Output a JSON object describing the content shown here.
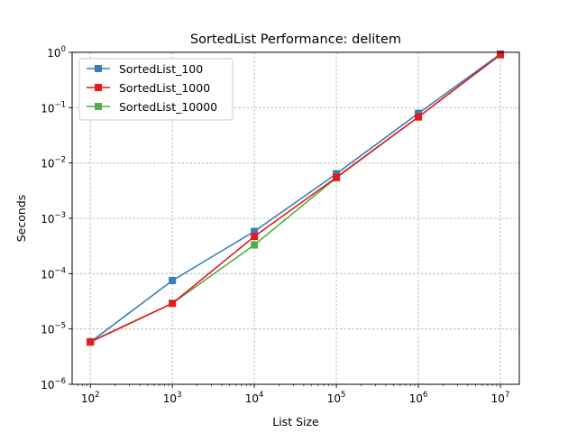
{
  "chart_data": {
    "type": "line",
    "title": "SortedList Performance: delitem",
    "xlabel": "List Size",
    "ylabel": "Seconds",
    "xscale": "log",
    "yscale": "log",
    "xlim": [
      60,
      17000000
    ],
    "ylim": [
      1e-06,
      1
    ],
    "xticks": [
      {
        "value": 100,
        "base": "10",
        "exp": "2"
      },
      {
        "value": 1000,
        "base": "10",
        "exp": "3"
      },
      {
        "value": 10000,
        "base": "10",
        "exp": "4"
      },
      {
        "value": 100000,
        "base": "10",
        "exp": "5"
      },
      {
        "value": 1000000,
        "base": "10",
        "exp": "6"
      },
      {
        "value": 10000000,
        "base": "10",
        "exp": "7"
      }
    ],
    "yticks": [
      {
        "value": 1e-06,
        "base": "10",
        "exp": "−6"
      },
      {
        "value": 1e-05,
        "base": "10",
        "exp": "−5"
      },
      {
        "value": 0.0001,
        "base": "10",
        "exp": "−4"
      },
      {
        "value": 0.001,
        "base": "10",
        "exp": "−3"
      },
      {
        "value": 0.01,
        "base": "10",
        "exp": "−2"
      },
      {
        "value": 0.1,
        "base": "10",
        "exp": "−1"
      },
      {
        "value": 1,
        "base": "10",
        "exp": "0"
      }
    ],
    "grid": true,
    "legend_position": "upper-left",
    "x": [
      100,
      1000,
      10000,
      100000,
      1000000,
      10000000
    ],
    "series": [
      {
        "name": "SortedList_100",
        "color": "#377eb8",
        "values": [
          5.8e-06,
          7.5e-05,
          0.00058,
          0.0064,
          0.079,
          0.93
        ]
      },
      {
        "name": "SortedList_10000",
        "color": "#4daf4a",
        "values": [
          5.9e-06,
          2.9e-05,
          0.00033,
          0.0054,
          0.068,
          0.9
        ]
      },
      {
        "name": "SortedList_1000",
        "color": "#e41a1c",
        "values": [
          5.8e-06,
          2.9e-05,
          0.00047,
          0.0055,
          0.068,
          0.91
        ]
      }
    ],
    "legend_order": [
      0,
      2,
      1
    ]
  }
}
